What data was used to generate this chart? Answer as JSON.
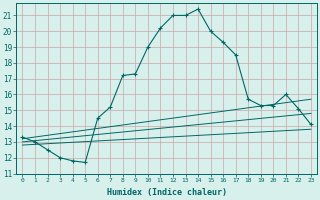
{
  "xlabel": "Humidex (Indice chaleur)",
  "bg_color": "#d8f0ec",
  "grid_color": "#c8a8a8",
  "line_color": "#006666",
  "tick_color": "#006666",
  "xlim": [
    -0.5,
    23.5
  ],
  "ylim": [
    11,
    21.8
  ],
  "xticks": [
    0,
    1,
    2,
    3,
    4,
    5,
    6,
    7,
    8,
    9,
    10,
    11,
    12,
    13,
    14,
    15,
    16,
    17,
    18,
    19,
    20,
    21,
    22,
    23
  ],
  "yticks": [
    11,
    12,
    13,
    14,
    15,
    16,
    17,
    18,
    19,
    20,
    21
  ],
  "line1_x": [
    0,
    1,
    2,
    3,
    4,
    5,
    6,
    7,
    8,
    9,
    10,
    11,
    12,
    13,
    14,
    15,
    16,
    17,
    18,
    19,
    20,
    21,
    22,
    23
  ],
  "line1_y": [
    13.3,
    13.0,
    12.5,
    12.0,
    11.8,
    11.7,
    14.5,
    15.2,
    17.2,
    17.3,
    19.0,
    20.2,
    21.0,
    21.0,
    21.4,
    20.0,
    19.3,
    18.5,
    15.7,
    15.3,
    15.3,
    16.0,
    15.1,
    14.1
  ],
  "line2_x": [
    0,
    23
  ],
  "line2_y": [
    12.8,
    13.8
  ],
  "line3_x": [
    0,
    23
  ],
  "line3_y": [
    13.0,
    14.8
  ],
  "line4_x": [
    0,
    23
  ],
  "line4_y": [
    13.2,
    15.7
  ]
}
